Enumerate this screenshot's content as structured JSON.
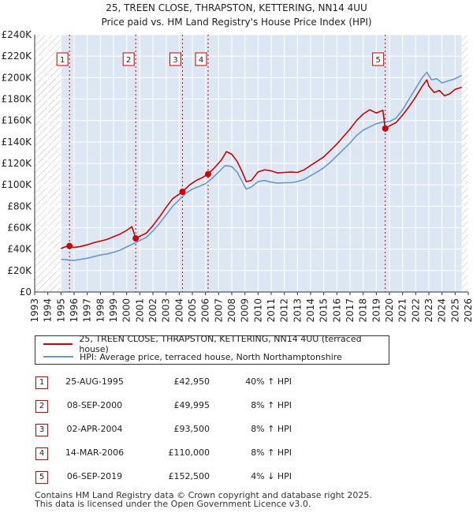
{
  "chart_data": {
    "type": "line",
    "title": "25, TREEN CLOSE, THRAPSTON, KETTERING, NN14 4UU",
    "subtitle": "Price paid vs. HM Land Registry's House Price Index (HPI)",
    "xlabel": "",
    "ylabel": "",
    "xlim": [
      1993,
      2026
    ],
    "ylim": [
      0,
      240000
    ],
    "x_ticks": [
      "1993",
      "1994",
      "1995",
      "1996",
      "1997",
      "1998",
      "1999",
      "2000",
      "2001",
      "2002",
      "2003",
      "2004",
      "2005",
      "2006",
      "2007",
      "2008",
      "2009",
      "2010",
      "2011",
      "2012",
      "2013",
      "2014",
      "2015",
      "2016",
      "2017",
      "2018",
      "2019",
      "2020",
      "2021",
      "2022",
      "2023",
      "2024",
      "2025",
      "2026"
    ],
    "y_ticks": [
      {
        "value": 0,
        "label": "£0"
      },
      {
        "value": 20000,
        "label": "£20K"
      },
      {
        "value": 40000,
        "label": "£40K"
      },
      {
        "value": 60000,
        "label": "£60K"
      },
      {
        "value": 80000,
        "label": "£80K"
      },
      {
        "value": 100000,
        "label": "£100K"
      },
      {
        "value": 120000,
        "label": "£120K"
      },
      {
        "value": 140000,
        "label": "£140K"
      },
      {
        "value": 160000,
        "label": "£160K"
      },
      {
        "value": 180000,
        "label": "£180K"
      },
      {
        "value": 200000,
        "label": "£200K"
      },
      {
        "value": 220000,
        "label": "£220K"
      },
      {
        "value": 240000,
        "label": "£240K"
      }
    ],
    "data_range": [
      1995.0,
      2025.5
    ],
    "series": [
      {
        "name": "25, TREEN CLOSE, THRAPSTON, KETTERING, NN14 4UU (terraced house)",
        "color": "#cc0000",
        "points": [
          [
            1995.0,
            40500
          ],
          [
            1995.3,
            42000
          ],
          [
            1995.65,
            42950
          ],
          [
            1996.0,
            41500
          ],
          [
            1996.5,
            42500
          ],
          [
            1997.0,
            44000
          ],
          [
            1997.5,
            46000
          ],
          [
            1998.0,
            47500
          ],
          [
            1998.5,
            49000
          ],
          [
            1999.0,
            51500
          ],
          [
            1999.5,
            54000
          ],
          [
            2000.0,
            57500
          ],
          [
            2000.4,
            61000
          ],
          [
            2000.69,
            49995
          ],
          [
            2001.0,
            52000
          ],
          [
            2001.5,
            55000
          ],
          [
            2002.0,
            62000
          ],
          [
            2002.5,
            70000
          ],
          [
            2003.0,
            79000
          ],
          [
            2003.5,
            87000
          ],
          [
            2004.25,
            93500
          ],
          [
            2004.8,
            100000
          ],
          [
            2005.3,
            104000
          ],
          [
            2005.8,
            107000
          ],
          [
            2006.2,
            110000
          ],
          [
            2006.7,
            116000
          ],
          [
            2007.2,
            123000
          ],
          [
            2007.6,
            131000
          ],
          [
            2008.0,
            128500
          ],
          [
            2008.4,
            122000
          ],
          [
            2008.8,
            112000
          ],
          [
            2009.1,
            103000
          ],
          [
            2009.5,
            104000
          ],
          [
            2010.0,
            112000
          ],
          [
            2010.5,
            114000
          ],
          [
            2011.0,
            113000
          ],
          [
            2011.5,
            111000
          ],
          [
            2012.0,
            111500
          ],
          [
            2012.5,
            112000
          ],
          [
            2013.0,
            111500
          ],
          [
            2013.5,
            114000
          ],
          [
            2014.0,
            118000
          ],
          [
            2014.5,
            122000
          ],
          [
            2015.0,
            126000
          ],
          [
            2015.5,
            132000
          ],
          [
            2016.0,
            138000
          ],
          [
            2016.5,
            145000
          ],
          [
            2017.0,
            152000
          ],
          [
            2017.5,
            160000
          ],
          [
            2018.0,
            166000
          ],
          [
            2018.5,
            170000
          ],
          [
            2019.0,
            167000
          ],
          [
            2019.5,
            169500
          ],
          [
            2019.68,
            152500
          ],
          [
            2020.0,
            155000
          ],
          [
            2020.5,
            158000
          ],
          [
            2021.0,
            165000
          ],
          [
            2021.5,
            173000
          ],
          [
            2022.0,
            182000
          ],
          [
            2022.5,
            192000
          ],
          [
            2022.85,
            198000
          ],
          [
            2023.0,
            192000
          ],
          [
            2023.4,
            186000
          ],
          [
            2023.8,
            188000
          ],
          [
            2024.2,
            183000
          ],
          [
            2024.6,
            185000
          ],
          [
            2025.0,
            189000
          ],
          [
            2025.5,
            191000
          ]
        ]
      },
      {
        "name": "HPI: Average price, terraced house, North Northamptonshire",
        "color": "#6699cc",
        "points": [
          [
            1995.0,
            30500
          ],
          [
            1995.5,
            30000
          ],
          [
            1996.0,
            29500
          ],
          [
            1996.5,
            30500
          ],
          [
            1997.0,
            31500
          ],
          [
            1997.5,
            33000
          ],
          [
            1998.0,
            34500
          ],
          [
            1998.5,
            35500
          ],
          [
            1999.0,
            37000
          ],
          [
            1999.5,
            39000
          ],
          [
            2000.0,
            42000
          ],
          [
            2000.5,
            45000
          ],
          [
            2001.0,
            48000
          ],
          [
            2001.5,
            51000
          ],
          [
            2002.0,
            57000
          ],
          [
            2002.5,
            64000
          ],
          [
            2003.0,
            72000
          ],
          [
            2003.5,
            80000
          ],
          [
            2004.0,
            86000
          ],
          [
            2004.5,
            92000
          ],
          [
            2005.0,
            96000
          ],
          [
            2005.5,
            98500
          ],
          [
            2006.0,
            101000
          ],
          [
            2006.5,
            106000
          ],
          [
            2007.0,
            112000
          ],
          [
            2007.5,
            118000
          ],
          [
            2008.0,
            117000
          ],
          [
            2008.4,
            112000
          ],
          [
            2008.8,
            103000
          ],
          [
            2009.1,
            96000
          ],
          [
            2009.5,
            98000
          ],
          [
            2010.0,
            103000
          ],
          [
            2010.5,
            104000
          ],
          [
            2011.0,
            102500
          ],
          [
            2011.5,
            101500
          ],
          [
            2012.0,
            102000
          ],
          [
            2012.5,
            102000
          ],
          [
            2013.0,
            103000
          ],
          [
            2013.5,
            105000
          ],
          [
            2014.0,
            108500
          ],
          [
            2014.5,
            112000
          ],
          [
            2015.0,
            116000
          ],
          [
            2015.5,
            121000
          ],
          [
            2016.0,
            127000
          ],
          [
            2016.5,
            133000
          ],
          [
            2017.0,
            139000
          ],
          [
            2017.5,
            146000
          ],
          [
            2018.0,
            151000
          ],
          [
            2018.5,
            154000
          ],
          [
            2019.0,
            157000
          ],
          [
            2019.5,
            158500
          ],
          [
            2020.0,
            159000
          ],
          [
            2020.5,
            162000
          ],
          [
            2021.0,
            170000
          ],
          [
            2021.5,
            180000
          ],
          [
            2022.0,
            190000
          ],
          [
            2022.5,
            200000
          ],
          [
            2022.85,
            205000
          ],
          [
            2023.2,
            198000
          ],
          [
            2023.6,
            199000
          ],
          [
            2024.0,
            195000
          ],
          [
            2024.5,
            197000
          ],
          [
            2025.0,
            199000
          ],
          [
            2025.5,
            202000
          ]
        ]
      }
    ],
    "sales": [
      {
        "label": "1",
        "x": 1995.65,
        "value": 42950
      },
      {
        "label": "2",
        "x": 2000.69,
        "value": 49995
      },
      {
        "label": "3",
        "x": 2004.25,
        "value": 93500
      },
      {
        "label": "4",
        "x": 2006.2,
        "value": 110000
      },
      {
        "label": "5",
        "x": 2019.68,
        "value": 152500
      }
    ],
    "legend_position": "below"
  },
  "legend": {
    "property_label": "25, TREEN CLOSE, THRAPSTON, KETTERING, NN14 4UU (terraced house)",
    "hpi_label": "HPI: Average price, terraced house, North Northamptonshire"
  },
  "transactions": [
    {
      "num": "1",
      "date": "25-AUG-1995",
      "price": "£42,950",
      "hpi": "40% ↑ HPI"
    },
    {
      "num": "2",
      "date": "08-SEP-2000",
      "price": "£49,995",
      "hpi": "8% ↑ HPI"
    },
    {
      "num": "3",
      "date": "02-APR-2004",
      "price": "£93,500",
      "hpi": "8% ↑ HPI"
    },
    {
      "num": "4",
      "date": "14-MAR-2006",
      "price": "£110,000",
      "hpi": "8% ↑ HPI"
    },
    {
      "num": "5",
      "date": "06-SEP-2019",
      "price": "£152,500",
      "hpi": "4% ↓ HPI"
    }
  ],
  "footer": {
    "line1": "Contains HM Land Registry data © Crown copyright and database right 2025.",
    "line2": "This data is licensed under the Open Government Licence v3.0."
  },
  "colors": {
    "property_line": "#cc0000",
    "hpi_line": "#6699cc",
    "plot_background": "#dde7f4",
    "hatch": "#b8b8b8",
    "grid": "#ffffff"
  }
}
